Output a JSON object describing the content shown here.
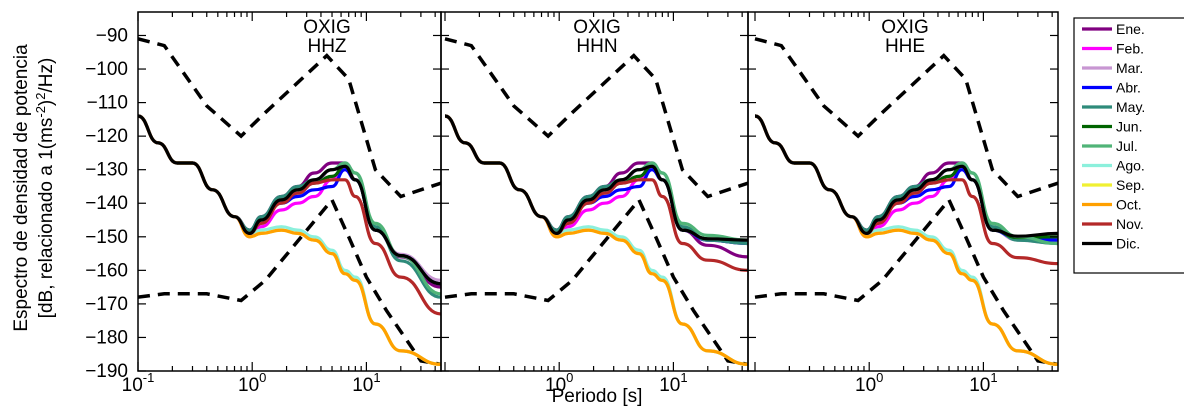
{
  "chart_data": {
    "type": "line",
    "xlabel": "Periodo [s]",
    "ylabel_line1": "Espectro de densidad de potencia",
    "ylabel_line2": "[dB, relacionado a 1(ms",
    "ylabel_sup1": "-2",
    "ylabel_mid": ")",
    "ylabel_sup2": "2",
    "ylabel_end": "/Hz)",
    "xscale": "log",
    "xlim": [
      0.1,
      45
    ],
    "ylim": [
      -190,
      -83
    ],
    "yticks": [
      -90,
      -100,
      -110,
      -120,
      -130,
      -140,
      -150,
      -160,
      -170,
      -180,
      -190
    ],
    "xtick_base": "10",
    "xtick_exponents": [
      "-1",
      "0",
      "1"
    ],
    "legend_position": "right",
    "panels": [
      {
        "station": "OXIG",
        "channel": "HHZ"
      },
      {
        "station": "OXIG",
        "channel": "HHN"
      },
      {
        "station": "OXIG",
        "channel": "HHE"
      }
    ],
    "noise_models": {
      "high": [
        [
          0.1,
          -91
        ],
        [
          0.17,
          -93
        ],
        [
          0.4,
          -111
        ],
        [
          0.8,
          -120
        ],
        [
          1.3,
          -113
        ],
        [
          4.5,
          -96
        ],
        [
          7,
          -103
        ],
        [
          12,
          -130
        ],
        [
          20,
          -138
        ],
        [
          45,
          -134
        ]
      ],
      "low": [
        [
          0.1,
          -168
        ],
        [
          0.17,
          -167
        ],
        [
          0.4,
          -167
        ],
        [
          0.8,
          -169
        ],
        [
          1.3,
          -163
        ],
        [
          5,
          -139
        ],
        [
          7,
          -150
        ],
        [
          10,
          -162
        ],
        [
          15,
          -172
        ],
        [
          30,
          -187
        ],
        [
          45,
          -188
        ]
      ]
    },
    "series": [
      {
        "name": "Ene.",
        "color": "#800080",
        "dy": [
          0,
          0,
          0,
          0,
          0,
          0,
          1,
          1,
          1,
          1,
          2,
          2,
          1,
          0,
          0,
          0
        ],
        "end": [
          -165,
          -156,
          -151
        ]
      },
      {
        "name": "Feb.",
        "color": "#ff00ff",
        "dy": [
          0,
          0,
          0,
          0,
          0,
          0,
          -1,
          -2,
          -3,
          -4,
          -5,
          -3,
          -1,
          0,
          0,
          0
        ],
        "end": [
          -164,
          -152,
          -150
        ]
      },
      {
        "name": "Mar.",
        "color": "#c896d2",
        "dy": [
          0,
          0,
          0,
          0,
          0,
          0,
          0,
          0,
          0,
          -1,
          -1,
          0,
          0,
          0,
          0,
          0
        ],
        "end": [
          -163,
          -152,
          -152
        ]
      },
      {
        "name": "Abr.",
        "color": "#0000ff",
        "dy": [
          0,
          0,
          0,
          0,
          0,
          0,
          0,
          0,
          -1,
          -2,
          -3,
          -5,
          -1,
          0,
          0,
          0
        ],
        "end": [
          -164,
          -152,
          -151
        ]
      },
      {
        "name": "May.",
        "color": "#2e8b7a",
        "dy": [
          0,
          0,
          0,
          0,
          0,
          0,
          1,
          1,
          1,
          1,
          0,
          0,
          1,
          2,
          1,
          0
        ],
        "end": [
          -168,
          -152,
          -152
        ]
      },
      {
        "name": "Jun.",
        "color": "#006400",
        "dy": [
          0,
          0,
          0,
          0,
          0,
          0,
          0,
          0,
          0,
          0,
          -1,
          -2,
          0,
          0,
          0,
          0
        ],
        "end": [
          -164,
          -151,
          -150
        ]
      },
      {
        "name": "Jul.",
        "color": "#50b478",
        "dy": [
          0,
          0,
          0,
          0,
          0,
          0,
          0,
          0,
          0,
          0,
          0,
          0,
          1,
          2,
          2,
          1
        ],
        "end": [
          -167,
          -151,
          -152
        ]
      },
      {
        "name": "Ago.",
        "color": "#8cf0dc",
        "lowtrack": true,
        "dy": [
          0,
          0,
          0,
          0,
          0,
          0,
          1,
          1,
          1,
          1,
          1,
          1,
          1,
          1,
          0,
          0
        ],
        "end": [
          -188,
          -188,
          -188
        ]
      },
      {
        "name": "Sep.",
        "color": "#f0f032",
        "lowtrack": true,
        "dy": [
          0,
          0,
          0,
          0,
          0,
          0,
          0,
          0,
          0,
          0,
          0,
          0,
          0,
          0,
          0,
          0
        ],
        "end": [
          -188,
          -188,
          -188
        ]
      },
      {
        "name": "Oct.",
        "color": "#ffa000",
        "lowtrack": true,
        "dy": [
          0,
          0,
          0,
          0,
          0,
          0,
          0,
          0,
          0,
          0,
          0,
          0,
          0,
          0,
          0,
          0
        ],
        "end": [
          -188,
          -188,
          -188
        ]
      },
      {
        "name": "Nov.",
        "color": "#b42828",
        "nov": true,
        "dy": [
          0,
          0,
          0,
          0,
          0,
          0,
          0,
          0,
          0,
          0,
          0,
          0,
          0,
          0,
          0,
          0
        ],
        "end": [
          -173,
          -160,
          -158
        ]
      },
      {
        "name": "Dic.",
        "color": "#000000",
        "dy": [
          0,
          0,
          0,
          0,
          0,
          0,
          0,
          0,
          0,
          0,
          0,
          0,
          0,
          0,
          0,
          0
        ],
        "end": [
          -164,
          -151,
          -149
        ]
      }
    ]
  }
}
